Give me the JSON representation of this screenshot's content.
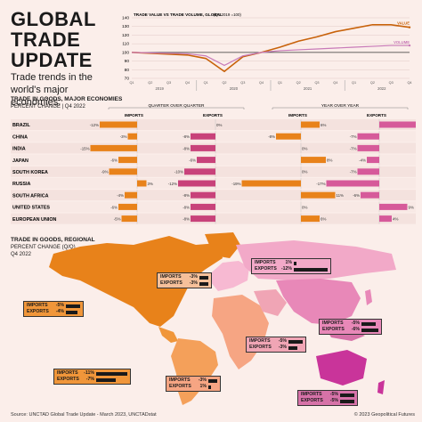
{
  "header": {
    "title_lines": [
      "GLOBAL",
      "TRADE",
      "UPDATE"
    ],
    "subtitle_lines": [
      "Trade trends in the",
      "world's major economies:"
    ]
  },
  "colors": {
    "background": "#fbeeea",
    "imports_qoq": "#e8821a",
    "exports_qoq": "#c8427a",
    "imports_yoy": "#e8821a",
    "exports_yoy": "#d65a9a",
    "value_line": "#c8620a",
    "volume_line": "#c87ab8",
    "americas": "#e8821a",
    "europe": "#f2a9c8",
    "asia": "#f0a0c0",
    "africa": "#f4a58a",
    "oceania": "#c9349a",
    "east_asia": "#d672a8"
  },
  "chart_data": [
    {
      "type": "line",
      "title": "TRADE VALUE VS TRADE VOLUME, GLOBAL",
      "subtitle": "(Q1 2019 =100)",
      "x_ticks": [
        "Q1",
        "Q2",
        "Q3",
        "Q4",
        "Q1",
        "Q2",
        "Q3",
        "Q4",
        "Q1",
        "Q2",
        "Q3",
        "Q4",
        "Q1",
        "Q2",
        "Q3",
        "Q4"
      ],
      "year_labels": [
        "2019",
        "2020",
        "2021",
        "2022"
      ],
      "ylim": [
        70,
        140
      ],
      "y_ticks": [
        70,
        80,
        90,
        100,
        110,
        120,
        130,
        140
      ],
      "series": [
        {
          "name": "VALUE",
          "values": [
            100,
            99,
            98,
            97,
            93,
            78,
            95,
            100,
            106,
            113,
            118,
            124,
            128,
            132,
            132,
            129
          ]
        },
        {
          "name": "VOLUME",
          "values": [
            100,
            99.5,
            99,
            98.5,
            96,
            85,
            96,
            100,
            102,
            103,
            104,
            105,
            106,
            107,
            108,
            108
          ]
        }
      ]
    },
    {
      "type": "bar",
      "title": "TRADE IN GOODS, MAJOR ECONOMIES",
      "subtitle": "PERCENT CHANGE | Q4 2022",
      "panel_labels": [
        "QUARTER OVER QUARTER",
        "YEAR OVER YEAR"
      ],
      "column_labels": [
        "IMPORTS",
        "EXPORTS",
        "IMPORTS",
        "EXPORTS"
      ],
      "categories": [
        "BRAZIL",
        "CHINA",
        "INDIA",
        "JAPAN",
        "SOUTH KOREA",
        "RUSSIA",
        "SOUTH AFRICA",
        "UNITED STATES",
        "EUROPEAN UNION"
      ],
      "series": [
        {
          "name": "IMPORTS",
          "panel": "QUARTER OVER QUARTER",
          "values": [
            -12,
            -3,
            -15,
            -6,
            -9,
            3,
            -4,
            -6,
            -5
          ]
        },
        {
          "name": "EXPORTS",
          "panel": "QUARTER OVER QUARTER",
          "values": [
            0,
            -8,
            -8,
            -6,
            -10,
            -12,
            -8,
            -8,
            -8
          ]
        },
        {
          "name": "IMPORTS",
          "panel": "YEAR OVER YEAR",
          "values": [
            6,
            -8,
            0,
            8,
            0,
            -19,
            11,
            0,
            6
          ]
        },
        {
          "name": "EXPORTS",
          "panel": "YEAR OVER YEAR",
          "values": [
            22,
            -7,
            -7,
            -4,
            -7,
            -17,
            -6,
            9,
            4
          ]
        }
      ],
      "value_labels": {
        "qoq_imports": [
          "-12%",
          "-3%",
          "-15%",
          "-6%",
          "-9%",
          "3%",
          "-4%",
          "-6%",
          "-5%"
        ],
        "qoq_exports": [
          "0%",
          "-8%",
          "-8%",
          "-6%",
          "-10%",
          "-12%",
          "-8%",
          "-8%",
          "-8%"
        ],
        "yoy_imports": [
          "6%",
          "-8%",
          "0%",
          "8%",
          "0%",
          "-19%",
          "11%",
          "0%",
          "6%"
        ],
        "yoy_exports": [
          "22%",
          "-7%",
          "-7%",
          "-4%",
          "-7%",
          "-17%",
          "-6%",
          "9%",
          "4%"
        ]
      }
    },
    {
      "type": "bar",
      "title": "TRADE IN GOODS, REGIONAL",
      "subtitle_lines": [
        "PERCENT CHANGE (Q/Q)",
        "Q4 2022"
      ],
      "regions": [
        {
          "id": "north-america",
          "imports": "-5%",
          "exports": "-4%",
          "imports_value": -5,
          "exports_value": -4
        },
        {
          "id": "europe",
          "imports": "-3%",
          "exports": "-3%",
          "imports_value": -3,
          "exports_value": -3
        },
        {
          "id": "cis",
          "imports": "1%",
          "exports": "-12%",
          "imports_value": 1,
          "exports_value": -12
        },
        {
          "id": "east-asia",
          "imports": "-5%",
          "exports": "-6%",
          "imports_value": -5,
          "exports_value": -6
        },
        {
          "id": "middle-east",
          "imports": "-5%",
          "exports": "-3%",
          "imports_value": -5,
          "exports_value": -3
        },
        {
          "id": "south-america",
          "imports": "-11%",
          "exports": "-7%",
          "imports_value": -11,
          "exports_value": -7
        },
        {
          "id": "africa",
          "imports": "-3%",
          "exports": "1%",
          "imports_value": -3,
          "exports_value": 1
        },
        {
          "id": "oceania",
          "imports": "-5%",
          "exports": "-5%",
          "imports_value": -5,
          "exports_value": -5
        }
      ],
      "row_labels": {
        "imports": "IMPORTS",
        "exports": "EXPORTS"
      }
    }
  ],
  "footer": {
    "source": "Source: UNCTAD Global Trade Update - March 2023, UNCTADstat",
    "copyright": "© 2023 Geopolitical Futures"
  }
}
